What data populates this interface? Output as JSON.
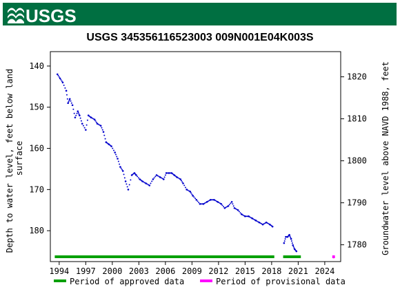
{
  "header": {
    "agency": "USGS",
    "brand_color": "#006f41"
  },
  "chart_data": {
    "type": "scatter",
    "title": "USGS 345356116523003 009N001E04K003S",
    "xlabel": "",
    "ylabel_left": "Depth to water level, feet below land surface",
    "ylabel_right": "Groundwater level above NAVD 1988, feet",
    "x_ticks": [
      "1994",
      "1997",
      "2000",
      "2003",
      "2006",
      "2009",
      "2012",
      "2015",
      "2018",
      "2021",
      "2024"
    ],
    "y_ticks_left": [
      "140",
      "150",
      "160",
      "170",
      "180"
    ],
    "y_ticks_right": [
      "1820",
      "1810",
      "1800",
      "1790",
      "1780"
    ],
    "xlim": [
      1993.0,
      2025.8
    ],
    "ylim_left": [
      136.5,
      187.5
    ],
    "ylim_right": [
      1826.0,
      1776.0
    ],
    "y_inverted": true,
    "grid": false,
    "legend_position": "bottom",
    "series": [
      {
        "name": "Period of approved data",
        "color": "#0000cc",
        "x": [
          1993.8,
          1994.1,
          1994.4,
          1994.8,
          1995.0,
          1995.2,
          1995.5,
          1995.8,
          1996.1,
          1996.3,
          1996.6,
          1997.0,
          1997.3,
          1997.6,
          1998.0,
          1998.3,
          1998.7,
          1999.0,
          1999.3,
          1999.6,
          1999.9,
          2000.3,
          2000.6,
          2000.9,
          2001.2,
          2001.5,
          2001.8,
          2002.2,
          2002.5,
          2002.7,
          2003.1,
          2003.4,
          2003.8,
          2004.2,
          2004.6,
          2005.0,
          2005.4,
          2005.8,
          2006.1,
          2006.4,
          2006.7,
          2007.0,
          2007.3,
          2007.7,
          2008.0,
          2008.4,
          2008.8,
          2009.1,
          2009.5,
          2009.9,
          2010.3,
          2010.7,
          2011.1,
          2011.5,
          2011.9,
          2012.3,
          2012.7,
          2013.1,
          2013.5,
          2013.8,
          2014.2,
          2014.6,
          2015.0,
          2015.4,
          2015.8,
          2016.2,
          2016.6,
          2017.0,
          2017.4,
          2017.8,
          2018.1
        ],
        "y": [
          142.0,
          143.0,
          144.0,
          146.0,
          149.0,
          148.0,
          149.5,
          152.5,
          151.0,
          152.0,
          154.0,
          155.5,
          152.0,
          152.5,
          153.0,
          154.0,
          154.5,
          156.0,
          158.5,
          159.0,
          159.5,
          161.0,
          162.5,
          164.5,
          165.5,
          168.0,
          170.0,
          166.5,
          166.0,
          166.5,
          167.5,
          168.0,
          168.5,
          169.0,
          167.5,
          166.5,
          167.0,
          167.5,
          166.0,
          166.0,
          166.0,
          166.5,
          167.0,
          167.5,
          168.5,
          170.0,
          170.5,
          171.5,
          172.5,
          173.5,
          173.5,
          173.0,
          172.5,
          172.5,
          173.0,
          173.5,
          174.5,
          174.0,
          173.0,
          174.5,
          175.0,
          176.0,
          176.5,
          176.5,
          177.0,
          177.5,
          178.0,
          178.5,
          178.0,
          178.5,
          179.0
        ]
      },
      {
        "name": "",
        "color": "#0000cc",
        "x": [
          2019.4,
          2019.6,
          2019.8,
          2020.0,
          2020.2,
          2020.4,
          2020.6,
          2020.8
        ],
        "y": [
          183.0,
          181.5,
          181.5,
          181.0,
          182.0,
          183.5,
          184.5,
          185.0
        ]
      },
      {
        "name": "Period of provisional data",
        "color": "#ff00ff",
        "x": [
          2025.0
        ],
        "y": [
          186.5
        ]
      }
    ],
    "periods": [
      {
        "kind": "approved",
        "color": "#00a000",
        "from": 1993.5,
        "to": 2018.3
      },
      {
        "kind": "approved",
        "color": "#00a000",
        "from": 2019.3,
        "to": 2021.3
      },
      {
        "kind": "provisional",
        "color": "#ff00ff",
        "from": 2024.85,
        "to": 2025.15
      }
    ],
    "legend": [
      {
        "label": "Period of approved data",
        "color": "#00a000"
      },
      {
        "label": "Period of provisional data",
        "color": "#ff00ff"
      }
    ]
  }
}
